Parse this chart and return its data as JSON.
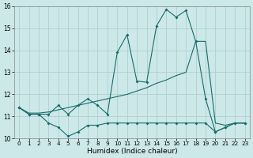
{
  "xlabel": "Humidex (Indice chaleur)",
  "bg_color": "#cce8e8",
  "grid_color": "#aacccc",
  "line_color": "#1a6b6b",
  "xlim": [
    -0.5,
    23.5
  ],
  "ylim": [
    10,
    16
  ],
  "xticks": [
    0,
    1,
    2,
    3,
    4,
    5,
    6,
    7,
    8,
    9,
    10,
    11,
    12,
    13,
    14,
    15,
    16,
    17,
    18,
    19,
    20,
    21,
    22,
    23
  ],
  "yticks": [
    10,
    11,
    12,
    13,
    14,
    15,
    16
  ],
  "line1_x": [
    0,
    1,
    2,
    3,
    4,
    5,
    6,
    7,
    8,
    9,
    10,
    11,
    12,
    13,
    14,
    15,
    16,
    17,
    18,
    19,
    20,
    21,
    22,
    23
  ],
  "line1_y": [
    11.4,
    11.1,
    11.1,
    11.1,
    11.5,
    11.1,
    11.5,
    11.8,
    11.5,
    11.1,
    13.9,
    14.7,
    12.6,
    12.55,
    15.1,
    15.85,
    15.5,
    15.8,
    14.4,
    11.8,
    10.3,
    10.5,
    10.7,
    10.7
  ],
  "line2_x": [
    0,
    1,
    2,
    3,
    4,
    5,
    6,
    7,
    8,
    9,
    10,
    11,
    12,
    13,
    14,
    15,
    16,
    17,
    18,
    19,
    20,
    21,
    22,
    23
  ],
  "line2_y": [
    11.4,
    11.15,
    11.15,
    11.2,
    11.3,
    11.4,
    11.5,
    11.6,
    11.7,
    11.8,
    11.9,
    12.0,
    12.15,
    12.3,
    12.5,
    12.65,
    12.85,
    13.0,
    14.4,
    14.4,
    10.7,
    10.6,
    10.7,
    10.7
  ],
  "line3_x": [
    0,
    1,
    2,
    3,
    4,
    5,
    6,
    7,
    8,
    9,
    10,
    11,
    12,
    13,
    14,
    15,
    16,
    17,
    18,
    19,
    20,
    21,
    22,
    23
  ],
  "line3_y": [
    11.4,
    11.1,
    11.1,
    10.7,
    10.5,
    10.1,
    10.3,
    10.6,
    10.6,
    10.7,
    10.7,
    10.7,
    10.7,
    10.7,
    10.7,
    10.7,
    10.7,
    10.7,
    10.7,
    10.7,
    10.3,
    10.5,
    10.7,
    10.7
  ]
}
